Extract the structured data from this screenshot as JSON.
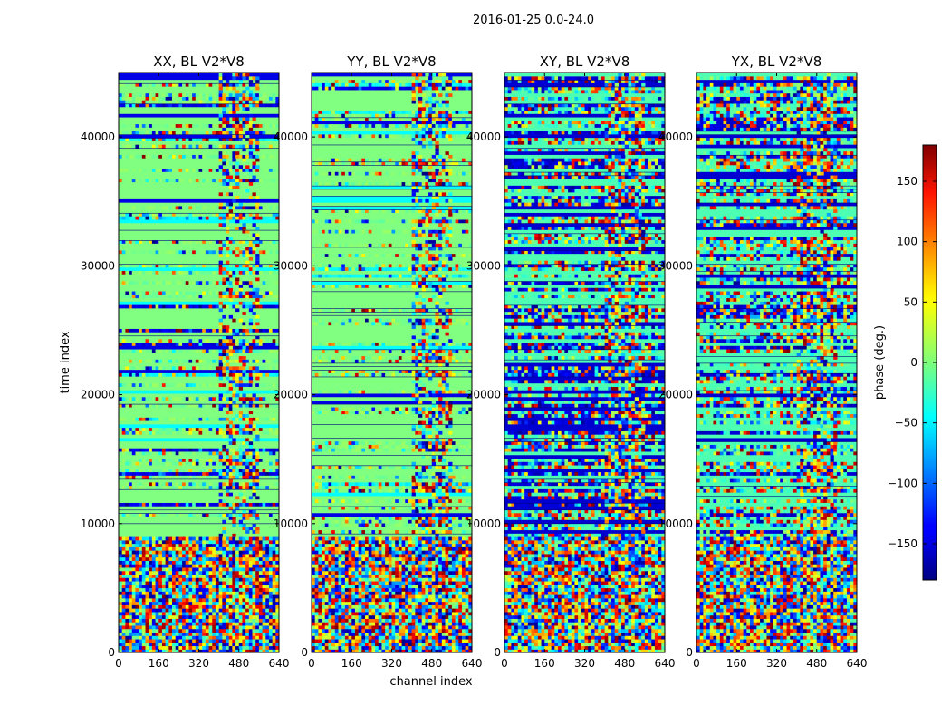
{
  "figure": {
    "suptitle": "2016-01-25 0.0-24.0"
  },
  "chart_data": {
    "type": "heatmap",
    "xlabel": "channel index",
    "ylabel": "time index",
    "xlim": [
      0,
      640
    ],
    "ylim": [
      0,
      45000
    ],
    "x_ticks": [
      0,
      160,
      320,
      480,
      640
    ],
    "y_ticks": [
      0,
      10000,
      20000,
      30000,
      40000
    ],
    "colorbar": {
      "label": "phase (deg.)",
      "colormap": "jet",
      "range": [
        -180,
        180
      ],
      "ticks": [
        -150,
        -100,
        -50,
        0,
        50,
        100,
        150
      ]
    },
    "panels": [
      {
        "title": "XX, BL V2*V8",
        "polarization": "XX",
        "baseline": "V2*V8"
      },
      {
        "title": "YY, BL V2*V8",
        "polarization": "YY",
        "baseline": "V2*V8"
      },
      {
        "title": "XY, BL V2*V8",
        "polarization": "XY",
        "baseline": "V2*V8"
      },
      {
        "title": "YX, BL V2*V8",
        "polarization": "YX",
        "baseline": "V2*V8"
      }
    ],
    "observations": {
      "noisy_region_time_range": [
        0,
        9000
      ],
      "speckled_channel_range": [
        400,
        560
      ]
    }
  }
}
